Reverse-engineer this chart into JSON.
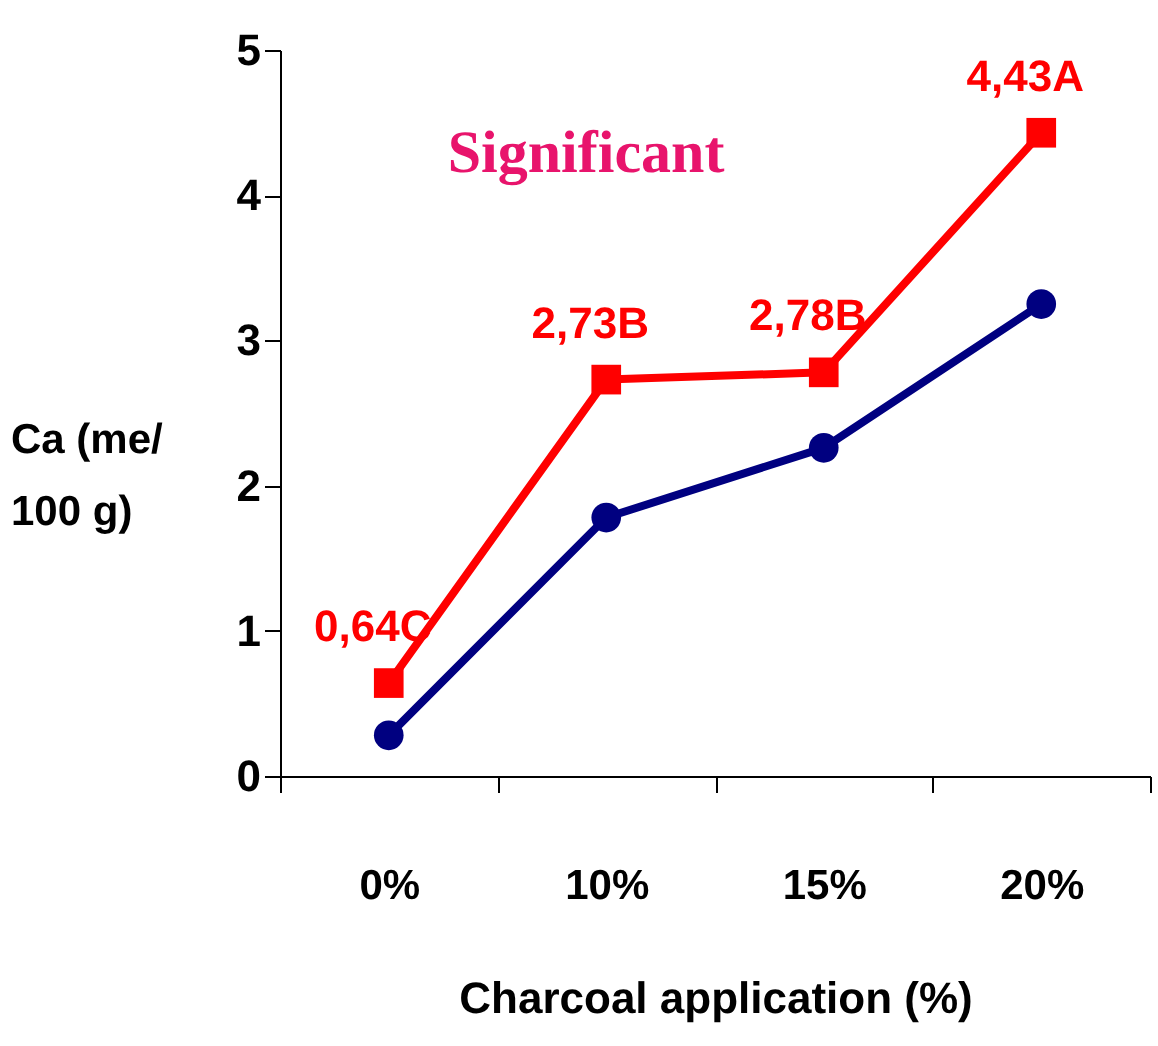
{
  "chart_data": {
    "type": "line",
    "xlabel": "Charcoal application (%)",
    "ylabel": "Ca (me/ 100 g)",
    "categories": [
      "0%",
      "10%",
      "15%",
      "20%"
    ],
    "series": [
      {
        "color": "#ff0000",
        "marker": "square",
        "values": [
          0.64,
          2.73,
          2.78,
          4.43
        ],
        "value_labels": [
          "0,64C",
          "2,73B",
          "2,78B",
          "4,43A"
        ]
      },
      {
        "color": "#000080",
        "marker": "circle",
        "values": [
          0.28,
          1.78,
          2.26,
          3.25
        ]
      }
    ],
    "ylim": [
      0,
      5
    ],
    "yticks": [
      0,
      1,
      2,
      3,
      4,
      5
    ],
    "grid": false,
    "annotations": [
      "Significant"
    ]
  }
}
